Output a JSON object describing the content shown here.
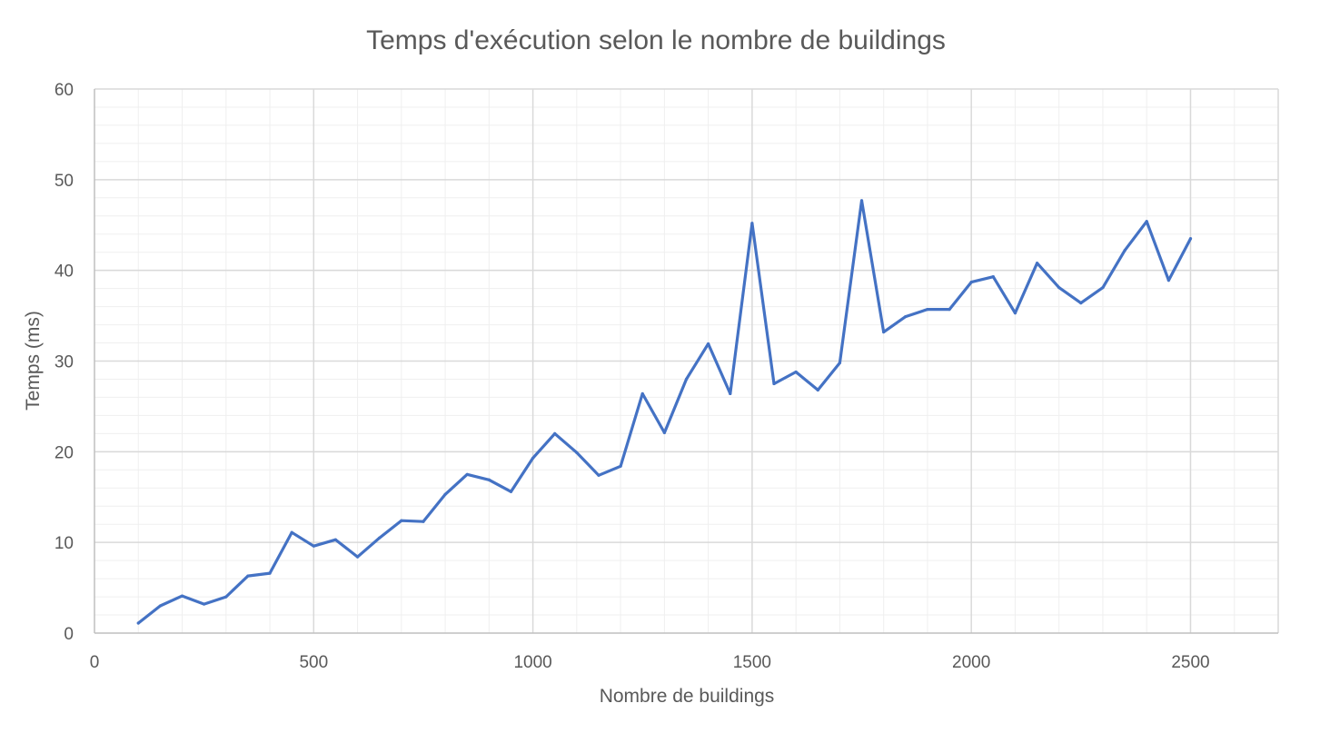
{
  "chart_data": {
    "type": "line",
    "title": "Temps d'exécution selon le nombre de buildings",
    "xlabel": "Nombre de buildings",
    "ylabel": "Temps (ms)",
    "xlim": [
      0,
      2700
    ],
    "ylim": [
      0,
      60
    ],
    "x_ticks": [
      0,
      500,
      1000,
      1500,
      2000,
      2500
    ],
    "y_ticks": [
      0,
      10,
      20,
      30,
      40,
      50,
      60
    ],
    "x_tick_labels": [
      "0",
      "500",
      "1000",
      "1500",
      "2000",
      "2500"
    ],
    "y_tick_labels": [
      "0",
      "10",
      "20",
      "30",
      "40",
      "50",
      "60"
    ],
    "grid": true,
    "minor_grid": true,
    "legend": "none",
    "series": [
      {
        "color": "#4472c4",
        "x": [
          100,
          150,
          200,
          250,
          300,
          350,
          400,
          450,
          500,
          550,
          600,
          650,
          700,
          750,
          800,
          850,
          900,
          950,
          1000,
          1050,
          1100,
          1150,
          1200,
          1250,
          1300,
          1350,
          1400,
          1450,
          1500,
          1550,
          1600,
          1650,
          1700,
          1750,
          1800,
          1850,
          1900,
          1950,
          2000,
          2050,
          2100,
          2150,
          2200,
          2250,
          2300,
          2350,
          2400,
          2450,
          2500
        ],
        "y": [
          1.1,
          3.0,
          4.1,
          3.2,
          4.0,
          6.3,
          6.6,
          11.1,
          9.6,
          10.3,
          8.4,
          10.5,
          12.4,
          12.3,
          15.3,
          17.5,
          16.9,
          15.6,
          19.3,
          22.0,
          19.9,
          17.4,
          18.4,
          26.4,
          22.1,
          28.0,
          31.9,
          26.4,
          45.2,
          27.5,
          28.8,
          26.8,
          29.8,
          47.7,
          33.2,
          34.9,
          35.7,
          35.7,
          38.7,
          39.3,
          35.3,
          40.8,
          38.1,
          36.4,
          38.1,
          42.2,
          45.4,
          38.9,
          43.5
        ]
      }
    ]
  }
}
